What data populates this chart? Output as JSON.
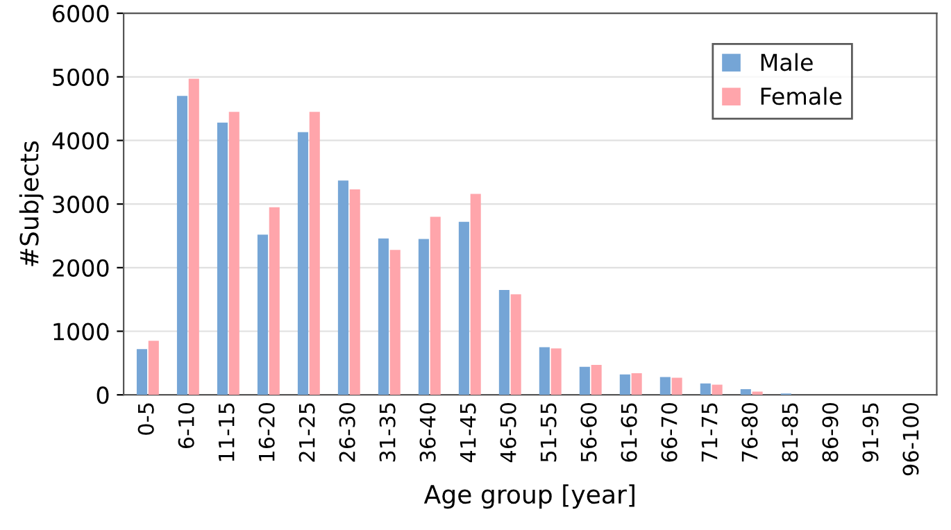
{
  "chart_data": {
    "type": "bar",
    "xlabel": "Age group [year]",
    "ylabel": "#Subjects",
    "categories": [
      "0-5",
      "6-10",
      "11-15",
      "16-20",
      "21-25",
      "26-30",
      "31-35",
      "36-40",
      "41-45",
      "46-50",
      "51-55",
      "56-60",
      "61-65",
      "66-70",
      "71-75",
      "76-80",
      "81-85",
      "86-90",
      "91-95",
      "96-100"
    ],
    "series": [
      {
        "name": "Male",
        "color": "#75a5d6",
        "values": [
          720,
          4700,
          4280,
          2520,
          4130,
          3370,
          2460,
          2450,
          2720,
          1650,
          750,
          440,
          320,
          280,
          180,
          90,
          20,
          0,
          0,
          0
        ]
      },
      {
        "name": "Female",
        "color": "#ffa5ab",
        "values": [
          850,
          4970,
          4450,
          2950,
          4450,
          3230,
          2280,
          2800,
          3160,
          1580,
          730,
          470,
          340,
          270,
          160,
          50,
          null,
          0,
          0,
          0
        ]
      }
    ],
    "ylim": [
      0,
      6000
    ],
    "yticks": [
      0,
      1000,
      2000,
      3000,
      4000,
      5000,
      6000
    ],
    "grid": "y",
    "legend": "top right"
  }
}
